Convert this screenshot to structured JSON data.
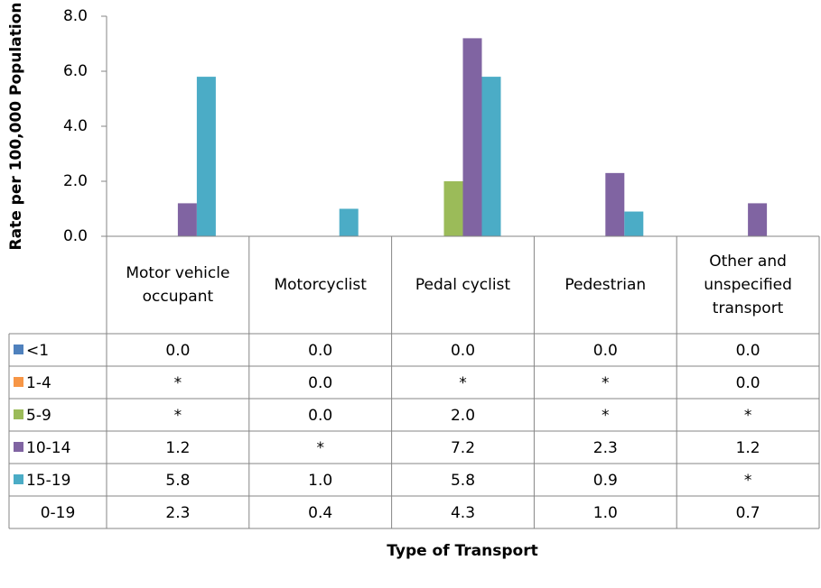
{
  "chart_data": {
    "type": "bar",
    "y_label": "Rate per 100,000 Population",
    "x_label": "Type of Transport",
    "categories": [
      "Motor vehicle occupant",
      "Motorcyclist",
      "Pedal cyclist",
      "Pedestrian",
      "Other and unspecified transport"
    ],
    "ylim": [
      0,
      8
    ],
    "yticks": [
      {
        "value": 0,
        "label": "0.0"
      },
      {
        "value": 2,
        "label": "2.0"
      },
      {
        "value": 4,
        "label": "4.0"
      },
      {
        "value": 6,
        "label": "6.0"
      },
      {
        "value": 8,
        "label": "8.0"
      }
    ],
    "series": [
      {
        "name": "<1",
        "color": "#4F81BD",
        "values": [
          0,
          0,
          0,
          0,
          0
        ],
        "value_labels": [
          "0.0",
          "0.0",
          "0.0",
          "0.0",
          "0.0"
        ]
      },
      {
        "name": "1-4",
        "color": "#F79646",
        "values": [
          null,
          0,
          null,
          null,
          0
        ],
        "value_labels": [
          "*",
          "0.0",
          "*",
          "*",
          "0.0"
        ]
      },
      {
        "name": "5-9",
        "color": "#9BBB59",
        "values": [
          null,
          0,
          2.0,
          null,
          null
        ],
        "value_labels": [
          "*",
          "0.0",
          "2.0",
          "*",
          "*"
        ]
      },
      {
        "name": "10-14",
        "color": "#8064A2",
        "values": [
          1.2,
          null,
          7.2,
          2.3,
          1.2
        ],
        "value_labels": [
          "1.2",
          "*",
          "7.2",
          "2.3",
          "1.2"
        ]
      },
      {
        "name": "15-19",
        "color": "#4BACC6",
        "values": [
          5.8,
          1.0,
          5.8,
          0.9,
          null
        ],
        "value_labels": [
          "5.8",
          "1.0",
          "5.8",
          "0.9",
          "*"
        ]
      },
      {
        "name": "0-19",
        "values": [
          2.3,
          0.4,
          4.3,
          1.0,
          0.7
        ],
        "value_labels": [
          "2.3",
          "0.4",
          "4.3",
          "1.0",
          "0.7"
        ]
      }
    ]
  }
}
